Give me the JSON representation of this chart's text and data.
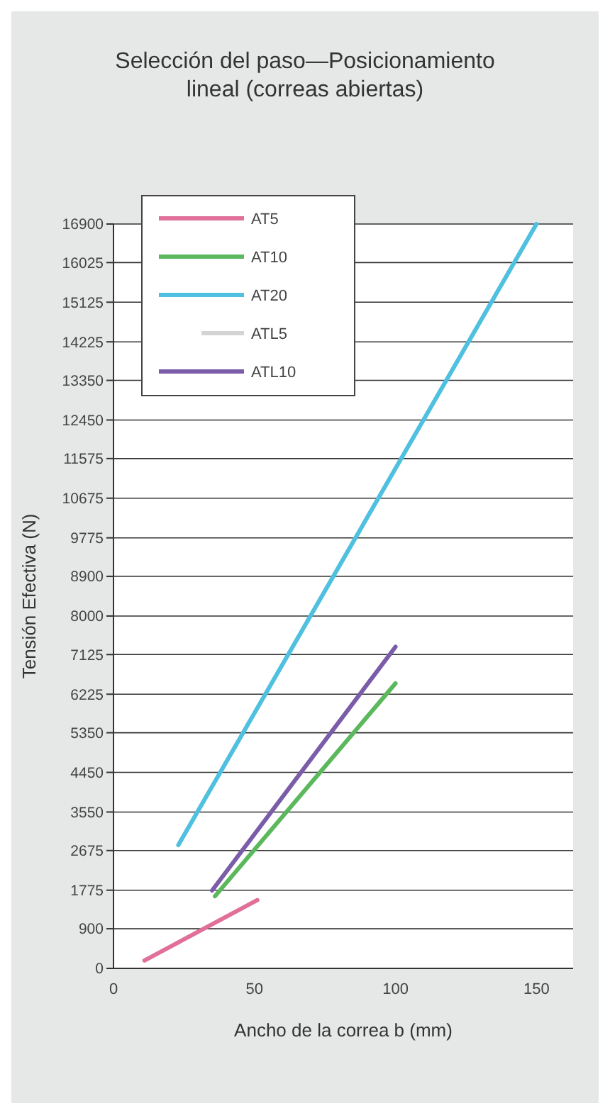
{
  "chart_data": {
    "type": "line",
    "title": "Selección del paso—Posicionamiento lineal (correas abiertas)",
    "xlabel": "Ancho de la correa b (mm)",
    "ylabel": "Tensión Efectiva (N)",
    "xlim": [
      0,
      163
    ],
    "xticks": [
      0,
      50,
      100,
      150
    ],
    "ylim": [
      0,
      16900
    ],
    "yticks": [
      0,
      900,
      1775,
      2675,
      3550,
      4450,
      5350,
      6225,
      7125,
      8000,
      8900,
      9775,
      10675,
      11575,
      12450,
      13350,
      14225,
      15125,
      16025,
      16900
    ],
    "grid": "y",
    "legend": "top left",
    "marker": "none",
    "line_style": "solid",
    "series": [
      {
        "name": "AT5",
        "color": "#e0709a",
        "x": [
          11,
          51
        ],
        "values": [
          180,
          1550
        ]
      },
      {
        "name": "AT10",
        "color": "#5cb85c",
        "x": [
          36,
          100
        ],
        "values": [
          1640,
          6470
        ]
      },
      {
        "name": "AT20",
        "color": "#4fc0e0",
        "x": [
          23,
          150
        ],
        "values": [
          2800,
          16900
        ]
      },
      {
        "name": "ATL5",
        "color": "#d4d4d4"
      },
      {
        "name": "ATL10",
        "color": "#7a5ca8",
        "x": [
          35,
          100
        ],
        "values": [
          1770,
          7300
        ]
      }
    ]
  }
}
